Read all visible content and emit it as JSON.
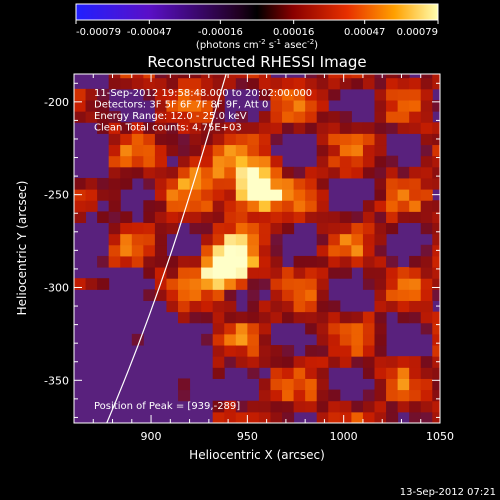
{
  "chart_data": {
    "type": "heatmap",
    "title": "Reconstructed RHESSI Image",
    "xlabel": "Heliocentric X (arcsec)",
    "ylabel": "Heliocentric Y (arcsec)",
    "xlim": [
      860,
      1050
    ],
    "ylim": [
      -373,
      -185
    ],
    "x_ticks": [
      900,
      950,
      1000,
      1050
    ],
    "y_ticks": [
      -200,
      -250,
      -300,
      -350
    ],
    "colorbar": {
      "ticks": [
        "-0.00079",
        "-0.00047",
        "-0.00016",
        "0.00016",
        "0.00047",
        "0.00079"
      ],
      "range": [
        -0.00079,
        0.00079
      ],
      "unit_label": "(photons cm",
      "unit_exp1": "-2",
      "unit_mid": " s",
      "unit_exp2": "-1",
      "unit_mid2": " asec",
      "unit_exp3": "-2",
      "unit_close": ")"
    },
    "info_lines": [
      "11-Sep-2012 19:58:48.000 to 20:02:00.000",
      "Detectors: 3F 5F 6F 7F 8F 9F, Att 0",
      "Energy Range: 12.0 - 25.0 keV",
      "Clean     Total counts: 4.75E+03"
    ],
    "peak_label": "Position of Peak = [939,-289]",
    "sources": [
      {
        "x": 953,
        "y": -247,
        "value": 0.00079
      },
      {
        "x": 939,
        "y": -289,
        "value": 0.00079
      }
    ],
    "limb_points": [
      [
        939,
        -185
      ],
      [
        922,
        -245
      ],
      [
        905,
        -305
      ],
      [
        877,
        -373
      ]
    ]
  },
  "timestamp": "13-Sep-2012 07:21"
}
